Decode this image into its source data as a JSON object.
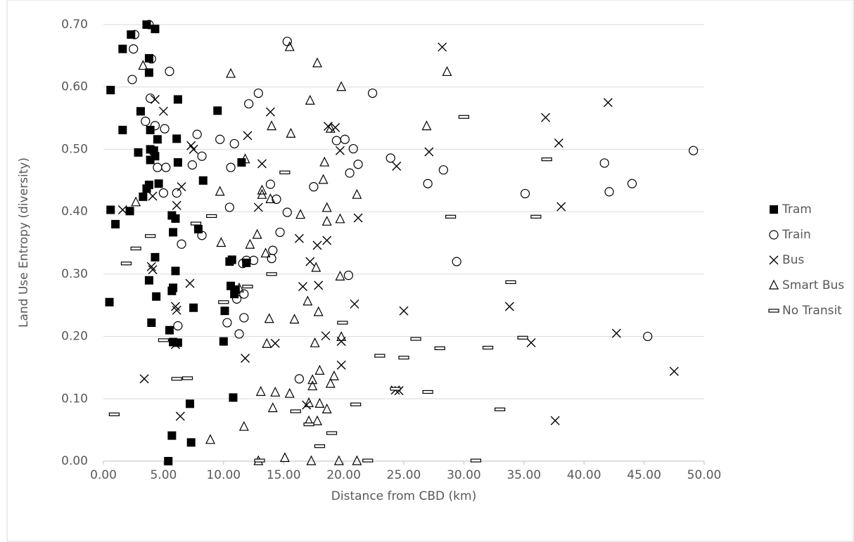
{
  "chart_data": {
    "type": "scatter",
    "x_label": "Distance from CBD (km)",
    "y_label": "Land Use Entropy (diversity)",
    "xlim": [
      0,
      50
    ],
    "ylim": [
      0,
      0.7
    ],
    "xticks": [
      {
        "value": 0,
        "label": "0.00"
      },
      {
        "value": 5,
        "label": "5.00"
      },
      {
        "value": 10,
        "label": "10.00"
      },
      {
        "value": 15,
        "label": "15.00"
      },
      {
        "value": 20,
        "label": "20.00"
      },
      {
        "value": 25,
        "label": "25.00"
      },
      {
        "value": 30,
        "label": "30.00"
      },
      {
        "value": 35,
        "label": "35.00"
      },
      {
        "value": 40,
        "label": "40.00"
      },
      {
        "value": 45,
        "label": "45.00"
      },
      {
        "value": 50,
        "label": "50.00"
      }
    ],
    "yticks": [
      {
        "value": 0,
        "label": "0.00"
      },
      {
        "value": 0.1,
        "label": "0.10"
      },
      {
        "value": 0.2,
        "label": "0.20"
      },
      {
        "value": 0.3,
        "label": "0.30"
      },
      {
        "value": 0.4,
        "label": "0.40"
      },
      {
        "value": 0.5,
        "label": "0.50"
      },
      {
        "value": 0.6,
        "label": "0.60"
      },
      {
        "value": 0.7,
        "label": "0.70"
      }
    ],
    "grid": true,
    "legend": "right",
    "series": [
      {
        "name": "Tram",
        "color": "#000000",
        "marker": "square",
        "x": [
          3.6,
          4.3,
          2.3,
          1.6,
          3.8,
          3.8,
          0.6,
          6.2,
          9.5,
          3.1,
          1.6,
          3.9,
          6.1,
          4.5,
          3.9,
          4.2,
          2.9,
          4.3,
          3.9,
          6.2,
          11.5,
          8.3,
          4.6,
          3.8,
          3.6,
          3.3,
          0.6,
          2.2,
          5.7,
          6.0,
          1.0,
          7.9,
          5.8,
          4.3,
          10.7,
          10.5,
          11.9,
          6.0,
          3.8,
          10.6,
          5.8,
          5.7,
          11.0,
          10.9,
          4.4,
          0.5,
          7.5,
          10.1,
          4.0,
          5.5,
          5.8,
          6.2,
          10.0,
          7.2,
          10.8,
          5.7,
          7.3,
          5.4
        ],
        "y": [
          0.7,
          0.693,
          0.684,
          0.661,
          0.646,
          0.623,
          0.595,
          0.58,
          0.562,
          0.561,
          0.531,
          0.531,
          0.517,
          0.516,
          0.5,
          0.498,
          0.495,
          0.489,
          0.483,
          0.479,
          0.479,
          0.45,
          0.445,
          0.443,
          0.437,
          0.424,
          0.403,
          0.401,
          0.394,
          0.389,
          0.38,
          0.372,
          0.367,
          0.327,
          0.323,
          0.32,
          0.318,
          0.305,
          0.29,
          0.281,
          0.278,
          0.273,
          0.275,
          0.268,
          0.264,
          0.255,
          0.246,
          0.241,
          0.222,
          0.21,
          0.191,
          0.19,
          0.192,
          0.092,
          0.102,
          0.041,
          0.03,
          0.0
        ]
      },
      {
        "name": "Train",
        "color": "#000000",
        "marker": "circle",
        "x": [
          3.8,
          2.6,
          2.5,
          4.0,
          5.5,
          2.4,
          15.3,
          12.9,
          22.4,
          12.1,
          3.9,
          3.5,
          4.3,
          5.1,
          7.8,
          9.7,
          20.1,
          19.4,
          10.9,
          8.2,
          20.8,
          4.5,
          5.2,
          10.6,
          21.2,
          20.5,
          23.9,
          28.3,
          41.7,
          49.1,
          27.0,
          44.0,
          42.1,
          35.1,
          17.5,
          13.9,
          14.4,
          6.1,
          5.0,
          7.4,
          10.5,
          15.3,
          14.7,
          8.2,
          6.5,
          14.1,
          14.0,
          12.5,
          11.6,
          11.9,
          11.1,
          11.7,
          20.4,
          29.4,
          11.7,
          10.3,
          6.2,
          11.3,
          16.3,
          45.3
        ],
        "y": [
          0.7,
          0.684,
          0.661,
          0.645,
          0.625,
          0.612,
          0.673,
          0.59,
          0.59,
          0.573,
          0.582,
          0.545,
          0.538,
          0.533,
          0.524,
          0.516,
          0.516,
          0.514,
          0.509,
          0.489,
          0.501,
          0.471,
          0.471,
          0.471,
          0.476,
          0.462,
          0.486,
          0.467,
          0.478,
          0.498,
          0.445,
          0.445,
          0.432,
          0.429,
          0.44,
          0.444,
          0.42,
          0.43,
          0.43,
          0.475,
          0.407,
          0.399,
          0.367,
          0.362,
          0.348,
          0.338,
          0.325,
          0.322,
          0.317,
          0.322,
          0.26,
          0.268,
          0.298,
          0.32,
          0.23,
          0.222,
          0.217,
          0.204,
          0.132,
          0.2
        ]
      },
      {
        "name": "Bus",
        "color": "#000000",
        "marker": "x",
        "x": [
          28.2,
          42.0,
          36.8,
          4.3,
          5.0,
          13.9,
          12.0,
          18.7,
          19.3,
          37.9,
          27.1,
          19.7,
          24.4,
          7.3,
          7.5,
          13.2,
          6.5,
          4.1,
          6.1,
          1.6,
          38.1,
          12.9,
          21.2,
          16.3,
          18.6,
          17.8,
          17.2,
          4.0,
          4.1,
          7.2,
          16.6,
          17.9,
          20.9,
          6.0,
          6.1,
          25.0,
          33.8,
          18.5,
          19.8,
          14.3,
          6.0,
          35.6,
          42.7,
          11.8,
          19.8,
          47.5,
          3.4,
          24.3,
          24.6,
          16.9,
          6.4,
          37.6
        ],
        "y": [
          0.664,
          0.575,
          0.551,
          0.58,
          0.561,
          0.56,
          0.522,
          0.537,
          0.535,
          0.51,
          0.496,
          0.498,
          0.473,
          0.506,
          0.5,
          0.477,
          0.44,
          0.425,
          0.41,
          0.403,
          0.408,
          0.407,
          0.39,
          0.357,
          0.354,
          0.346,
          0.32,
          0.312,
          0.307,
          0.285,
          0.28,
          0.282,
          0.252,
          0.248,
          0.242,
          0.241,
          0.248,
          0.201,
          0.192,
          0.189,
          0.187,
          0.19,
          0.205,
          0.165,
          0.154,
          0.144,
          0.132,
          0.114,
          0.113,
          0.09,
          0.072,
          0.065
        ]
      },
      {
        "name": "Smart Bus",
        "color": "#000000",
        "marker": "triangle",
        "x": [
          15.5,
          28.6,
          17.8,
          10.6,
          3.3,
          19.8,
          17.2,
          26.9,
          14.0,
          15.6,
          18.9,
          11.8,
          18.4,
          18.3,
          21.1,
          13.2,
          13.2,
          9.7,
          2.7,
          18.6,
          16.4,
          19.7,
          18.6,
          13.9,
          12.8,
          9.8,
          12.2,
          13.5,
          17.7,
          19.7,
          17.0,
          11.3,
          17.9,
          13.8,
          15.9,
          19.8,
          17.6,
          13.6,
          18.0,
          17.4,
          19.2,
          18.9,
          17.4,
          13.1,
          14.3,
          15.5,
          17.1,
          18.0,
          18.6,
          14.1,
          11.7,
          17.1,
          17.8,
          8.9,
          12.9,
          15.1,
          17.3,
          19.6,
          21.1
        ],
        "y": [
          0.664,
          0.624,
          0.638,
          0.621,
          0.634,
          0.6,
          0.578,
          0.537,
          0.537,
          0.525,
          0.533,
          0.484,
          0.479,
          0.451,
          0.427,
          0.434,
          0.427,
          0.432,
          0.415,
          0.406,
          0.395,
          0.388,
          0.384,
          0.42,
          0.363,
          0.35,
          0.347,
          0.333,
          0.31,
          0.296,
          0.256,
          0.277,
          0.239,
          0.228,
          0.227,
          0.199,
          0.189,
          0.188,
          0.145,
          0.13,
          0.136,
          0.124,
          0.12,
          0.111,
          0.11,
          0.108,
          0.093,
          0.092,
          0.083,
          0.085,
          0.055,
          0.064,
          0.064,
          0.034,
          0.0,
          0.005,
          0.0,
          0.0,
          0.0
        ]
      },
      {
        "name": "No Transit",
        "color": "#000000",
        "marker": "dash",
        "x": [
          30.0,
          36.9,
          15.1,
          28.9,
          36.0,
          9.0,
          7.7,
          3.9,
          2.7,
          1.9,
          14.0,
          12.0,
          33.9,
          10.0,
          19.9,
          26.0,
          34.9,
          5.0,
          28.0,
          32.0,
          23.0,
          25.0,
          6.1,
          7.0,
          24.3,
          27.0,
          21.0,
          33.0,
          16.0,
          17.1,
          19.0,
          0.9,
          18.0,
          22.0,
          31.0,
          13.0
        ],
        "y": [
          0.552,
          0.484,
          0.463,
          0.392,
          0.392,
          0.393,
          0.381,
          0.361,
          0.341,
          0.317,
          0.3,
          0.28,
          0.287,
          0.255,
          0.222,
          0.196,
          0.198,
          0.194,
          0.181,
          0.182,
          0.169,
          0.166,
          0.132,
          0.133,
          0.116,
          0.111,
          0.091,
          0.083,
          0.08,
          0.059,
          0.045,
          0.075,
          0.024,
          0.001,
          0.001,
          0.001
        ]
      }
    ]
  }
}
